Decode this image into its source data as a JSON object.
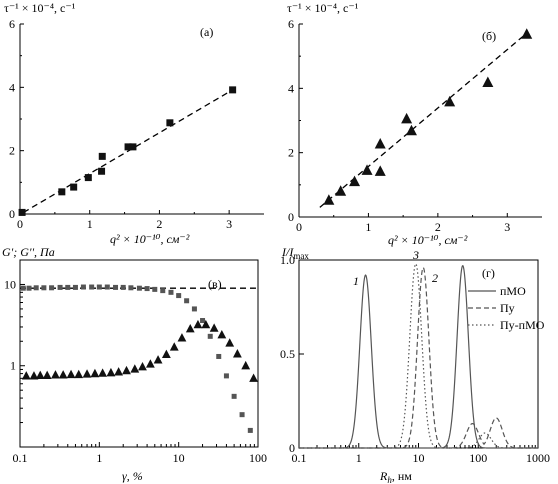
{
  "chart_data": [
    {
      "type": "scatter",
      "panel_label": "(а)",
      "ylabel": "τ⁻¹ × 10⁻⁴, с⁻¹",
      "xlabel": "q² × 10⁻¹⁰, см⁻²",
      "xlim": [
        0,
        3.5
      ],
      "ylim": [
        0,
        6
      ],
      "xticks": [
        "0",
        "1",
        "2",
        "3"
      ],
      "yticks": [
        "0",
        "2",
        "4",
        "6"
      ],
      "marker": "square",
      "points": [
        {
          "x": 0.03,
          "y": 0.05
        },
        {
          "x": 0.6,
          "y": 0.7
        },
        {
          "x": 0.77,
          "y": 0.85
        },
        {
          "x": 0.98,
          "y": 1.15
        },
        {
          "x": 1.17,
          "y": 1.35
        },
        {
          "x": 1.18,
          "y": 1.82
        },
        {
          "x": 1.55,
          "y": 2.12
        },
        {
          "x": 1.62,
          "y": 2.12
        },
        {
          "x": 2.15,
          "y": 2.88
        },
        {
          "x": 3.05,
          "y": 3.92
        }
      ],
      "fit_line": {
        "x": [
          0.05,
          3.05
        ],
        "y": [
          0.05,
          3.92
        ]
      }
    },
    {
      "type": "scatter",
      "panel_label": "(б)",
      "ylabel": "τ⁻¹ × 10⁻⁴, с⁻¹",
      "xlabel": "q² × 10⁻¹⁰, см⁻²",
      "xlim": [
        0,
        3.5
      ],
      "ylim": [
        0,
        6
      ],
      "xticks": [
        "0",
        "1",
        "2",
        "3"
      ],
      "yticks": [
        "0",
        "2",
        "4",
        "6"
      ],
      "marker": "triangle",
      "points": [
        {
          "x": 0.43,
          "y": 0.52
        },
        {
          "x": 0.6,
          "y": 0.8
        },
        {
          "x": 0.8,
          "y": 1.1
        },
        {
          "x": 0.98,
          "y": 1.45
        },
        {
          "x": 1.17,
          "y": 1.42
        },
        {
          "x": 1.17,
          "y": 2.27
        },
        {
          "x": 1.55,
          "y": 3.05
        },
        {
          "x": 1.62,
          "y": 2.68
        },
        {
          "x": 2.17,
          "y": 3.58
        },
        {
          "x": 2.72,
          "y": 4.18
        },
        {
          "x": 3.28,
          "y": 5.68
        }
      ],
      "fit_line": {
        "x": [
          0.3,
          3.3
        ],
        "y": [
          0.3,
          5.75
        ]
      }
    },
    {
      "type": "scatter",
      "panel_label": "(в)",
      "ylabel": "G'; G'', Па",
      "xlabel": "γ, %",
      "xscale": "log",
      "yscale": "log",
      "xlim": [
        0.1,
        100
      ],
      "ylim": [
        0.1,
        20
      ],
      "xticks": [
        "0.1",
        "1",
        "10",
        "100"
      ],
      "yticks": [
        "1",
        "10"
      ],
      "series": [
        {
          "marker": "square",
          "x": [
            0.11,
            0.13,
            0.16,
            0.2,
            0.25,
            0.32,
            0.4,
            0.5,
            0.63,
            0.8,
            1.0,
            1.26,
            1.6,
            2.0,
            2.5,
            3.2,
            4.0,
            5.0,
            6.3,
            8.0,
            10,
            12.6,
            15.8,
            20,
            25,
            32,
            40,
            50,
            63,
            80
          ],
          "y": [
            9.0,
            9.0,
            9.1,
            9.1,
            9.1,
            9.2,
            9.2,
            9.2,
            9.3,
            9.3,
            9.3,
            9.3,
            9.2,
            9.2,
            9.1,
            9.0,
            8.9,
            8.7,
            8.4,
            8.0,
            7.3,
            6.3,
            5.0,
            3.6,
            2.3,
            1.3,
            0.75,
            0.42,
            0.25,
            0.16
          ]
        },
        {
          "marker": "triangle",
          "x": [
            0.12,
            0.15,
            0.18,
            0.22,
            0.28,
            0.35,
            0.44,
            0.55,
            0.7,
            0.88,
            1.1,
            1.4,
            1.75,
            2.2,
            2.8,
            3.5,
            4.4,
            5.5,
            7.0,
            8.8,
            11,
            14,
            17.5,
            22,
            28,
            35,
            44,
            55,
            70,
            88
          ],
          "y": [
            0.75,
            0.75,
            0.76,
            0.76,
            0.77,
            0.77,
            0.78,
            0.78,
            0.79,
            0.8,
            0.81,
            0.82,
            0.84,
            0.87,
            0.91,
            0.97,
            1.05,
            1.18,
            1.38,
            1.7,
            2.2,
            2.85,
            3.2,
            3.2,
            2.9,
            2.4,
            1.9,
            1.4,
            1.0,
            0.7
          ]
        }
      ],
      "reference_line": {
        "y": 9.0
      }
    },
    {
      "type": "line",
      "panel_label": "(г)",
      "ylabel": "I/I",
      "ylabel_sub": "max",
      "xlabel": "R",
      "xlabel_sub": "h",
      "xlabel_unit": ", нм",
      "xscale": "log",
      "xlim": [
        0.1,
        1000
      ],
      "ylim": [
        0,
        1
      ],
      "xticks": [
        "0.1",
        "1",
        "10",
        "100",
        "1000"
      ],
      "yticks": [
        "0",
        "0.5",
        "1.0"
      ],
      "curve_labels": [
        "1",
        "2",
        "3"
      ],
      "series": [
        {
          "name": "пМО",
          "style": "solid",
          "peaks": [
            {
              "center": 1.3,
              "height": 0.92,
              "width": 0.095
            },
            {
              "center": 55,
              "height": 0.97,
              "width": 0.095
            }
          ]
        },
        {
          "name": "Пу",
          "style": "dashed",
          "peaks": [
            {
              "center": 12,
              "height": 0.96,
              "width": 0.095
            },
            {
              "center": 80,
              "height": 0.13,
              "width": 0.1
            },
            {
              "center": 200,
              "height": 0.16,
              "width": 0.1
            }
          ]
        },
        {
          "name": "Пу-пМО",
          "style": "dotted",
          "peaks": [
            {
              "center": 9,
              "height": 0.98,
              "width": 0.1
            },
            {
              "center": 130,
              "height": 0.08,
              "width": 0.1
            }
          ]
        }
      ]
    }
  ]
}
